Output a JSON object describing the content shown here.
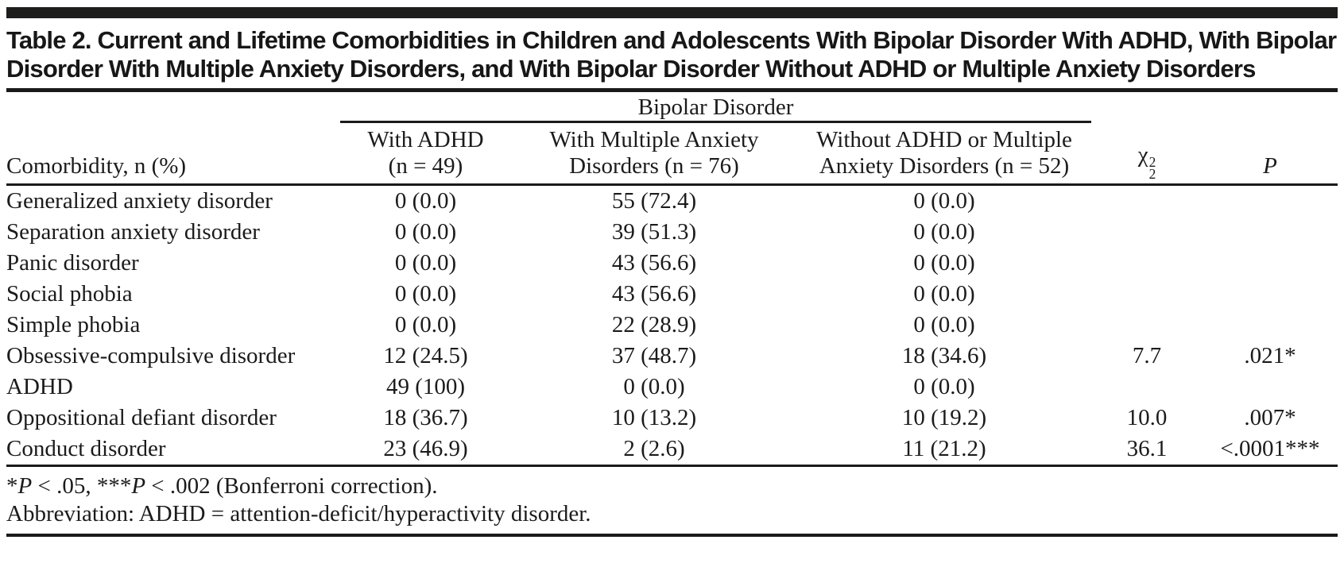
{
  "title": "Table 2. Current and Lifetime Comorbidities in Children and Adolescents With Bipolar Disorder With ADHD, With Bipolar Disorder With Multiple Anxiety Disorders, and With Bipolar Disorder Without ADHD or Multiple Anxiety Disorders",
  "table": {
    "group_header": "Bipolar Disorder",
    "stub_header": "Comorbidity, n (%)",
    "columns": [
      {
        "line1": "With ADHD",
        "line2": "(n = 49)"
      },
      {
        "line1": "With Multiple Anxiety",
        "line2": "Disorders  (n = 76)"
      },
      {
        "line1": "Without ADHD or Multiple",
        "line2": "Anxiety Disorders (n = 52)"
      }
    ],
    "chi_header": {
      "symbol": "χ",
      "sup": "2",
      "sub": "2"
    },
    "p_header": "P",
    "rows": [
      {
        "label": "Generalized anxiety disorder",
        "adhd": "0 (0.0)",
        "anxiety": "55 (72.4)",
        "without": "0 (0.0)",
        "chi": "",
        "p": ""
      },
      {
        "label": "Separation anxiety disorder",
        "adhd": "0 (0.0)",
        "anxiety": "39 (51.3)",
        "without": "0 (0.0)",
        "chi": "",
        "p": ""
      },
      {
        "label": "Panic disorder",
        "adhd": "0 (0.0)",
        "anxiety": "43 (56.6)",
        "without": "0 (0.0)",
        "chi": "",
        "p": ""
      },
      {
        "label": "Social phobia",
        "adhd": "0 (0.0)",
        "anxiety": "43 (56.6)",
        "without": "0 (0.0)",
        "chi": "",
        "p": ""
      },
      {
        "label": "Simple phobia",
        "adhd": "0 (0.0)",
        "anxiety": "22 (28.9)",
        "without": "0 (0.0)",
        "chi": "",
        "p": ""
      },
      {
        "label": "Obsessive-compulsive disorder",
        "adhd": "12 (24.5)",
        "anxiety": "37 (48.7)",
        "without": "18 (34.6)",
        "chi": "7.7",
        "p": ".021*"
      },
      {
        "label": "ADHD",
        "adhd": "49 (100)",
        "anxiety": "0 (0.0)",
        "without": "0 (0.0)",
        "chi": "",
        "p": ""
      },
      {
        "label": "Oppositional defiant disorder",
        "adhd": "18 (36.7)",
        "anxiety": "10 (13.2)",
        "without": "10 (19.2)",
        "chi": "10.0",
        "p": ".007*"
      },
      {
        "label": "Conduct disorder",
        "adhd": "23 (46.9)",
        "anxiety": "2 (2.6)",
        "without": "11 (21.2)",
        "chi": "36.1",
        "p": "<.0001***"
      }
    ]
  },
  "footnotes": {
    "line1": {
      "star1": "*",
      "p1": "P",
      "seg1": " < .05, ",
      "star2": "***",
      "p2": "P",
      "seg2": " < .002 (Bonferroni correction)."
    },
    "line2": "Abbreviation: ADHD = attention-deficit/hyperactivity disorder."
  },
  "colors": {
    "rule": "#1a1a1a",
    "text": "#1b1b1b",
    "background": "#ffffff"
  }
}
